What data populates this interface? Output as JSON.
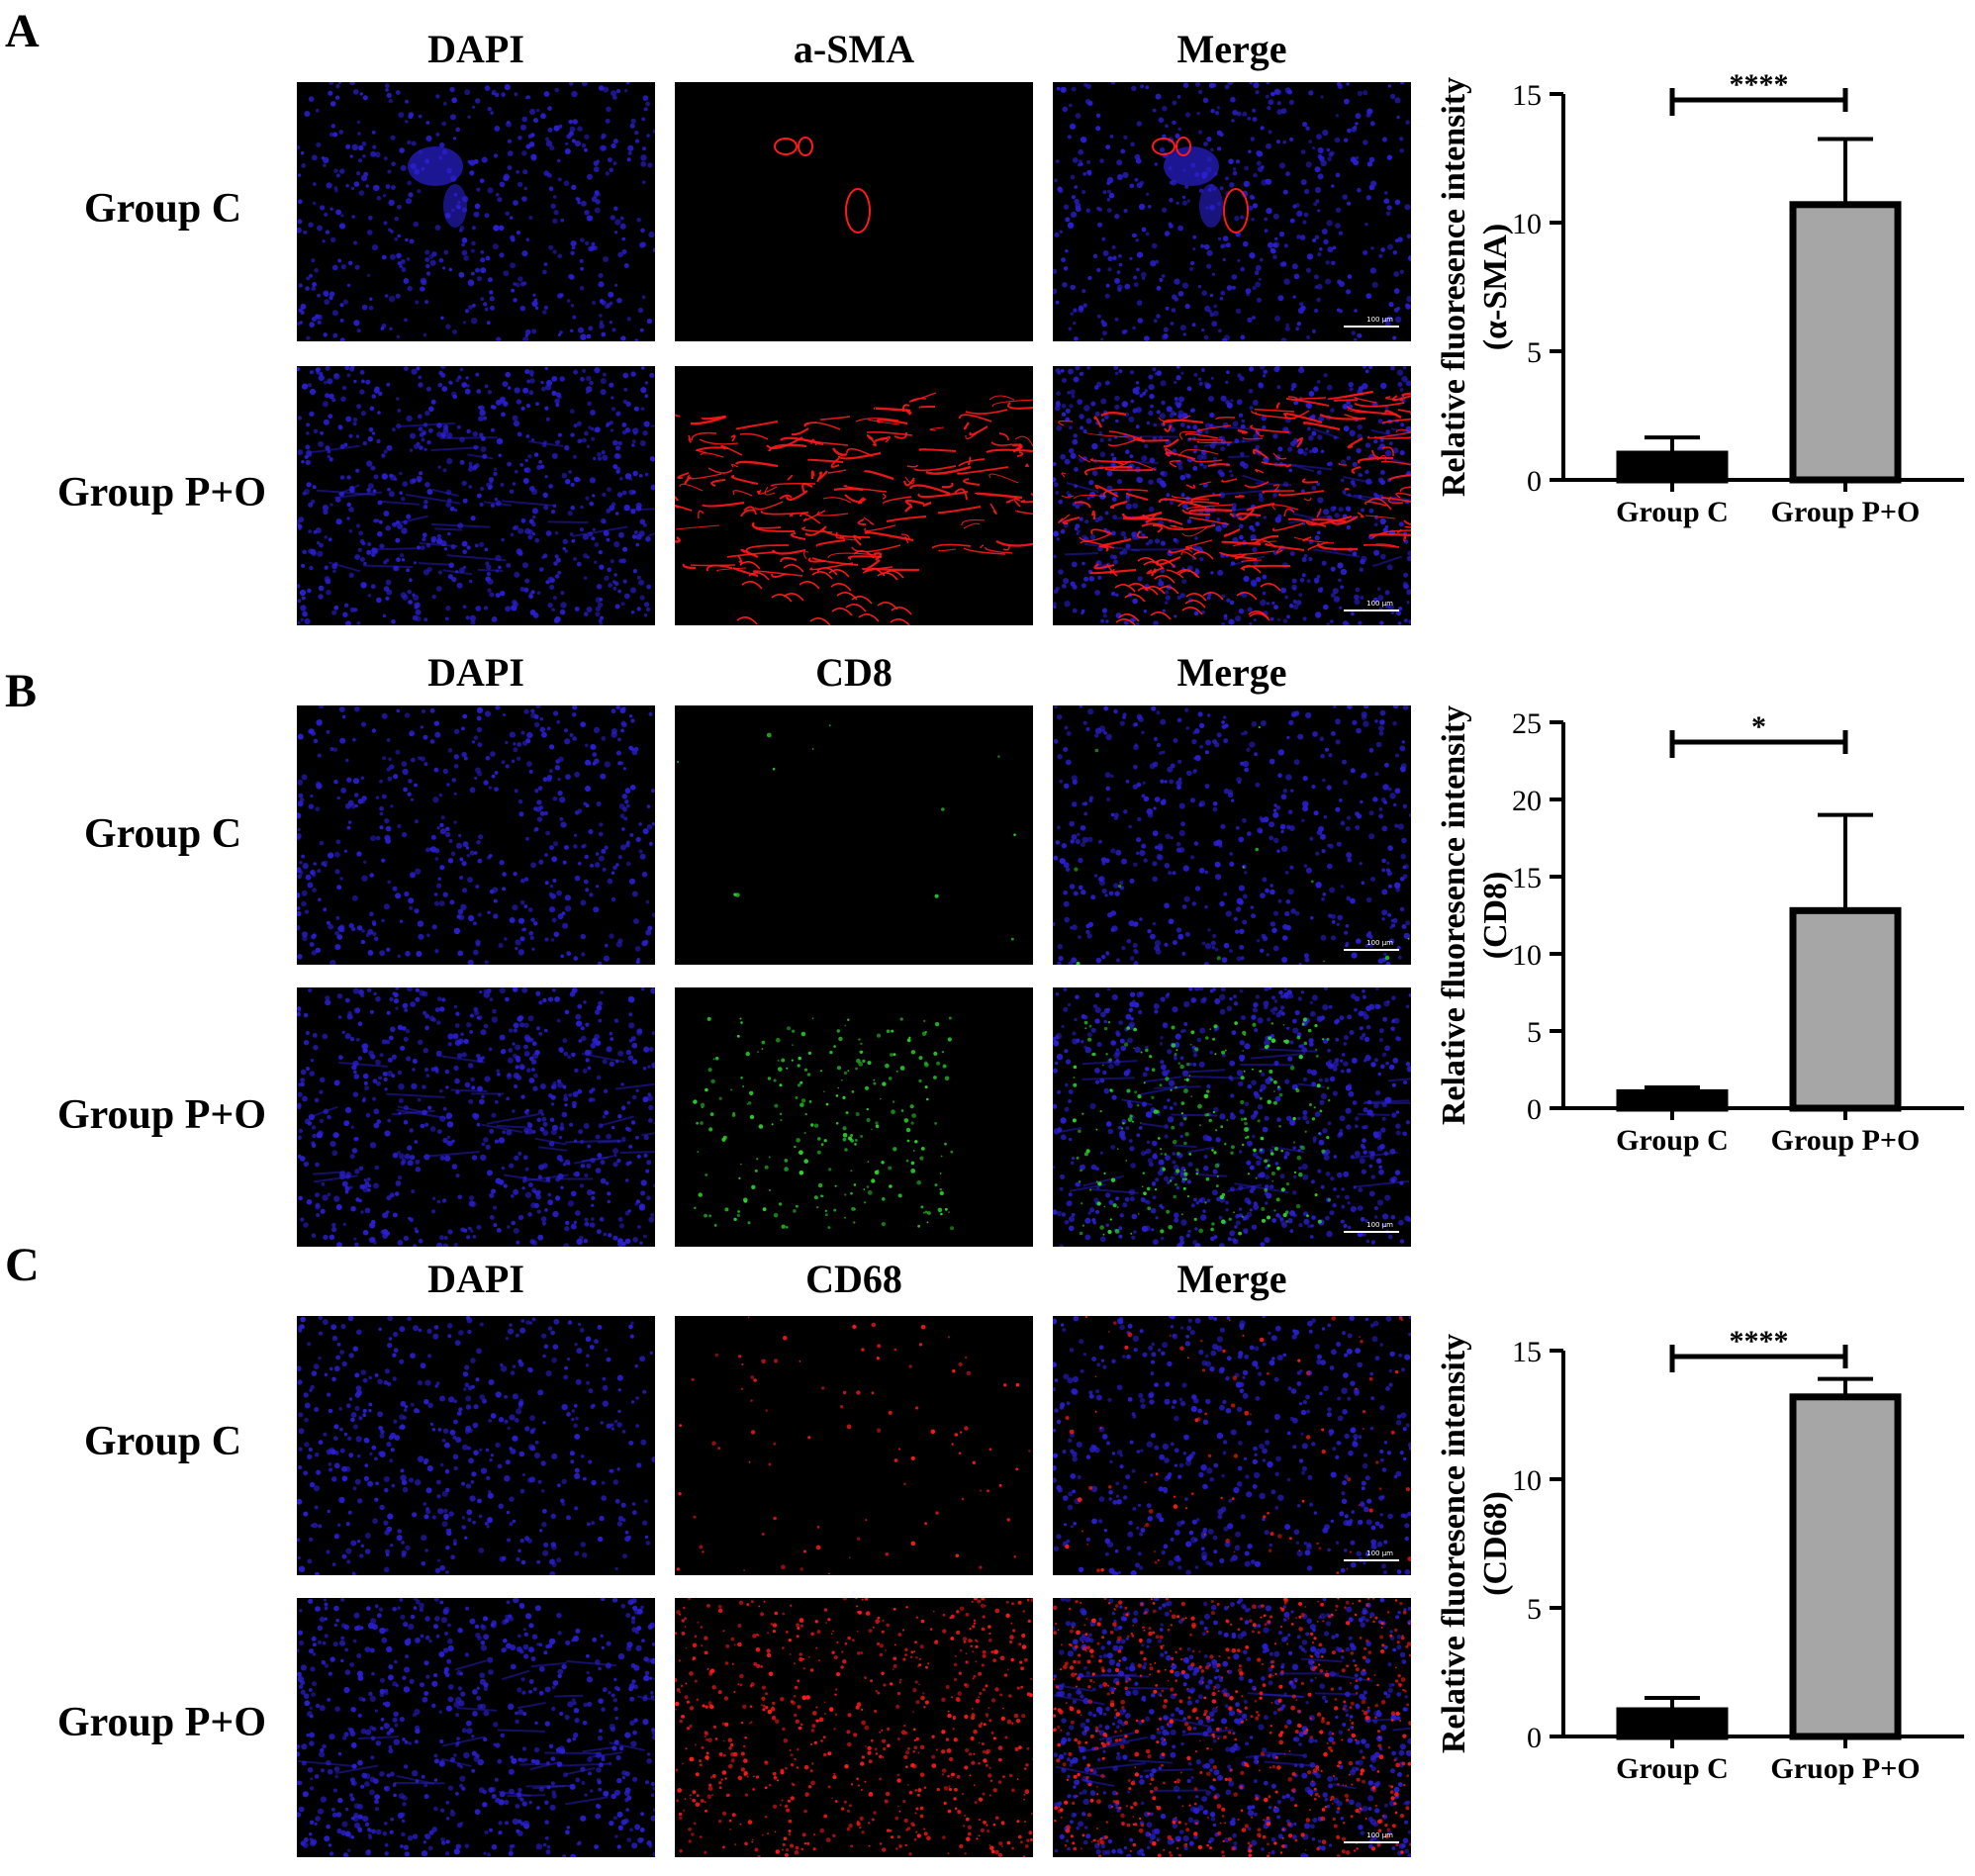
{
  "panels": [
    {
      "letter": "A",
      "columns": [
        "DAPI",
        "a-SMA",
        "Merge"
      ],
      "rows": [
        "Group C",
        "Group P+O"
      ],
      "scale_bar": "100 μm",
      "colors": {
        "nuclei": "#2a1fd0",
        "marker": "#ff1a1a"
      }
    },
    {
      "letter": "B",
      "columns": [
        "DAPI",
        "CD8",
        "Merge"
      ],
      "rows": [
        "Group C",
        "Group P+O"
      ],
      "scale_bar": "100 μm",
      "colors": {
        "nuclei": "#2a1fd0",
        "marker": "#2bd62b"
      }
    },
    {
      "letter": "C",
      "columns": [
        "DAPI",
        "CD68",
        "Merge"
      ],
      "rows": [
        "Group C",
        "Group P+O"
      ],
      "scale_bar": "100 μm",
      "colors": {
        "nuclei": "#2a1fd0",
        "marker": "#ff1a1a"
      }
    }
  ],
  "chart_data": [
    {
      "type": "bar",
      "ylabel_line1": "Relative fluoresence intensity",
      "ylabel_line2": "(α-SMA)",
      "categories": [
        "Group C",
        "Group P+O"
      ],
      "values": [
        1.0,
        10.7
      ],
      "errors": [
        0.65,
        2.55
      ],
      "ylim": [
        0,
        15
      ],
      "yticks": [
        0,
        5,
        10,
        15
      ],
      "significance": "****",
      "bar_colors": [
        "#000000",
        "#a6a6a6"
      ]
    },
    {
      "type": "bar",
      "ylabel_line1": "Relative fluoresence intensity",
      "ylabel_line2": "(CD8)",
      "categories": [
        "Group C",
        "Group P+O"
      ],
      "values": [
        1.0,
        12.8
      ],
      "errors": [
        0.35,
        6.2
      ],
      "ylim": [
        0,
        25
      ],
      "yticks": [
        0,
        5,
        10,
        15,
        20,
        25
      ],
      "significance": "*",
      "bar_colors": [
        "#000000",
        "#a6a6a6"
      ]
    },
    {
      "type": "bar",
      "ylabel_line1": "Relative fluoresence intensity",
      "ylabel_line2": "(CD68)",
      "categories": [
        "Group C",
        "Gruop P+O"
      ],
      "values": [
        1.0,
        13.2
      ],
      "errors": [
        0.5,
        0.7
      ],
      "ylim": [
        0,
        15
      ],
      "yticks": [
        0,
        5,
        10,
        15
      ],
      "significance": "****",
      "bar_colors": [
        "#000000",
        "#a6a6a6"
      ]
    }
  ]
}
